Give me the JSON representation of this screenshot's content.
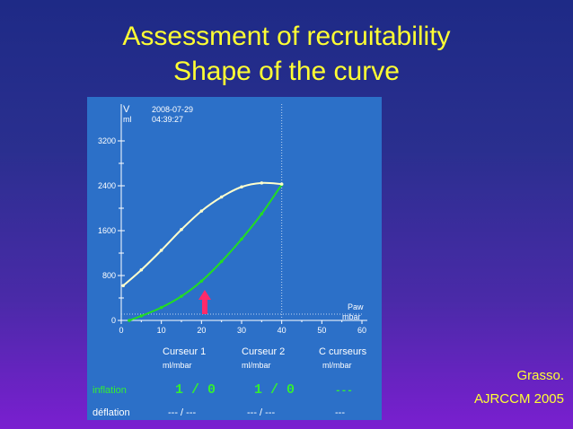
{
  "slide": {
    "title_line1": "Assessment of recruitability",
    "title_line2": "Shape of the curve",
    "citation_line1": "Grasso.",
    "citation_line2": "AJRCCM 2005"
  },
  "screen": {
    "y_axis_label": "V",
    "y_axis_unit": "ml",
    "date": "2008-07-29",
    "time": "04:39:27",
    "x_axis_label": "Paw",
    "x_axis_unit": "mbar",
    "columns": [
      {
        "title": "Curseur 1",
        "unit": "ml/mbar"
      },
      {
        "title": "Curseur 2",
        "unit": "ml/mbar"
      },
      {
        "title": "C curseurs",
        "unit": "ml/mbar"
      }
    ],
    "rows": [
      {
        "label": "inflation",
        "values": [
          "1 /  0",
          "1 /  0",
          "---"
        ]
      },
      {
        "label": "déflation",
        "values": [
          "--- / ---",
          "--- / ---",
          "---"
        ]
      }
    ],
    "colors": {
      "inflation_curve": "#22dd22",
      "deflation_curve": "#ffffcc",
      "arrow": "#ff2a6a",
      "inflation_text": "#33ee33",
      "background": "#2c70c8"
    }
  },
  "chart_data": {
    "type": "line",
    "xlabel": "Paw mbar",
    "ylabel": "V ml",
    "xlim": [
      0,
      60
    ],
    "ylim": [
      0,
      3200
    ],
    "x_ticks": [
      "0",
      "10",
      "20",
      "30",
      "40",
      "50",
      "60"
    ],
    "y_ticks": [
      "0",
      "800",
      "1600",
      "2400",
      "3200"
    ],
    "series": [
      {
        "name": "inflation",
        "x": [
          2,
          5,
          10,
          15,
          20,
          25,
          30,
          35,
          40
        ],
        "y": [
          0,
          80,
          230,
          430,
          700,
          1050,
          1450,
          1900,
          2420
        ]
      },
      {
        "name": "deflation",
        "x": [
          0.5,
          5,
          10,
          15,
          20,
          25,
          30,
          35,
          40
        ],
        "y": [
          620,
          900,
          1250,
          1620,
          1950,
          2200,
          2380,
          2450,
          2430
        ]
      }
    ]
  }
}
